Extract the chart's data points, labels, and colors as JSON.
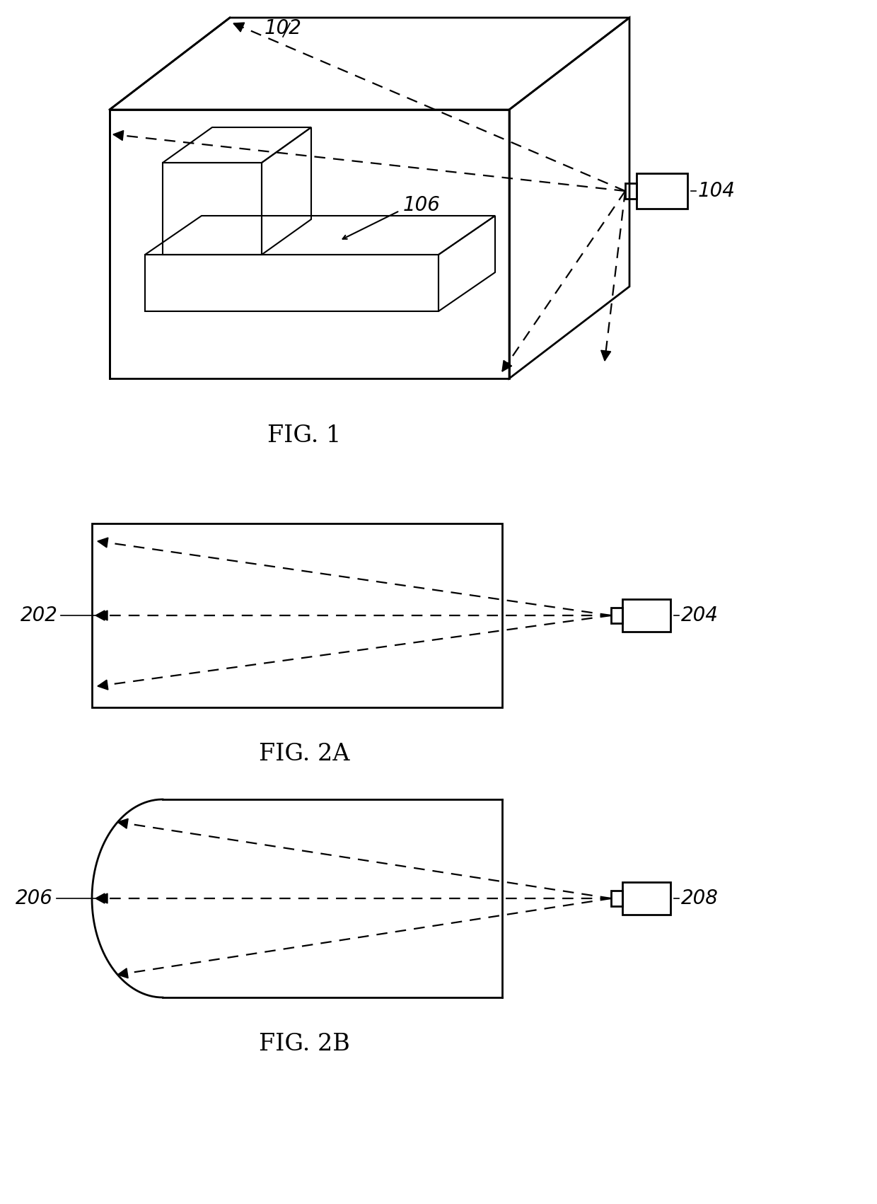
{
  "bg_color": "#ffffff",
  "line_color": "#000000",
  "fig1_label": "FIG. 1",
  "fig2a_label": "FIG. 2A",
  "fig2b_label": "FIG. 2B",
  "label_102": "102",
  "label_104": "104",
  "label_106": "106",
  "label_202": "202",
  "label_204": "204",
  "label_206": "206",
  "label_208": "208",
  "lw_main": 2.0,
  "lw_dash": 1.6,
  "dash_pattern": [
    7,
    5
  ],
  "fontsize_label": 20,
  "fontsize_fig": 24
}
